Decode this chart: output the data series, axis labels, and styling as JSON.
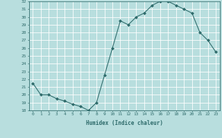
{
  "xlabel": "Humidex (Indice chaleur)",
  "x": [
    0,
    1,
    2,
    3,
    4,
    5,
    6,
    7,
    8,
    9,
    10,
    11,
    12,
    13,
    14,
    15,
    16,
    17,
    18,
    19,
    20,
    21,
    22,
    23
  ],
  "y": [
    21.5,
    20.0,
    20.0,
    19.5,
    19.2,
    18.8,
    18.5,
    18.0,
    19.0,
    22.5,
    26.0,
    29.5,
    29.0,
    30.0,
    30.5,
    31.5,
    32.0,
    32.0,
    31.5,
    31.0,
    30.5,
    28.0,
    27.0,
    25.5
  ],
  "ylim": [
    18,
    32
  ],
  "yticks": [
    18,
    19,
    20,
    21,
    22,
    23,
    24,
    25,
    26,
    27,
    28,
    29,
    30,
    31,
    32
  ],
  "line_color": "#2e6b6b",
  "marker": "D",
  "marker_size": 2,
  "bg_color": "#b8dede",
  "grid_color": "#ffffff",
  "label_color": "#2e6b6b",
  "tick_color": "#2e6b6b",
  "font": "monospace"
}
